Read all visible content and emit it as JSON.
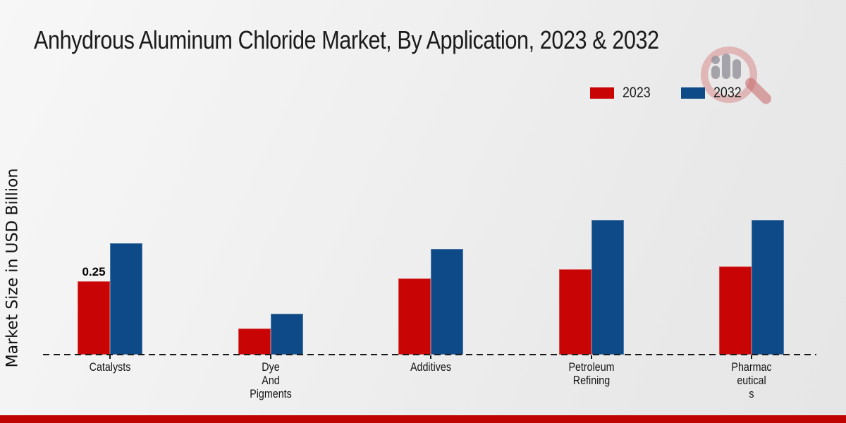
{
  "page": {
    "title": "Anhydrous Aluminum Chloride Market, By Application, 2023 & 2032"
  },
  "ylabel": "Market Size in USD Billion",
  "colors": {
    "series_2023": "#c80404",
    "series_2032": "#0e4a87",
    "footer_strip": "#bf0202",
    "text": "#1a1a1a",
    "watermark_pink": "rgba(214,130,130,0.5)",
    "watermark_gray": "rgba(150,150,158,0.85)"
  },
  "watermark_icon": "magnifier-bar-chart-logo",
  "chart_data": {
    "type": "bar",
    "title": "Anhydrous Aluminum Chloride Market, By Application, 2023 & 2032",
    "xlabel": "",
    "ylabel": "Market Size in USD Billion",
    "categories": [
      "Catalysts",
      "Dye And Pigments",
      "Additives",
      "Petroleum Refining",
      "Pharmaceuticals"
    ],
    "category_label_lines": [
      [
        "Catalysts"
      ],
      [
        "Dye",
        "And",
        "Pigments"
      ],
      [
        "Additives"
      ],
      [
        "Petroleum",
        "Refining"
      ],
      [
        "Pharmac",
        "eutical",
        "s"
      ]
    ],
    "series": [
      {
        "name": "2023",
        "color": "#c80404",
        "values": [
          0.25,
          0.09,
          0.26,
          0.29,
          0.3
        ]
      },
      {
        "name": "2032",
        "color": "#0e4a87",
        "values": [
          0.38,
          0.14,
          0.36,
          0.46,
          0.46
        ]
      }
    ],
    "data_labels": [
      {
        "series": "2023",
        "category": "Catalysts",
        "text": "0.25"
      }
    ],
    "ylim": [
      0,
      0.5
    ],
    "grid": false,
    "y_tick_labels": [],
    "baseline_style": "dashed",
    "legend_position": "top-right"
  }
}
